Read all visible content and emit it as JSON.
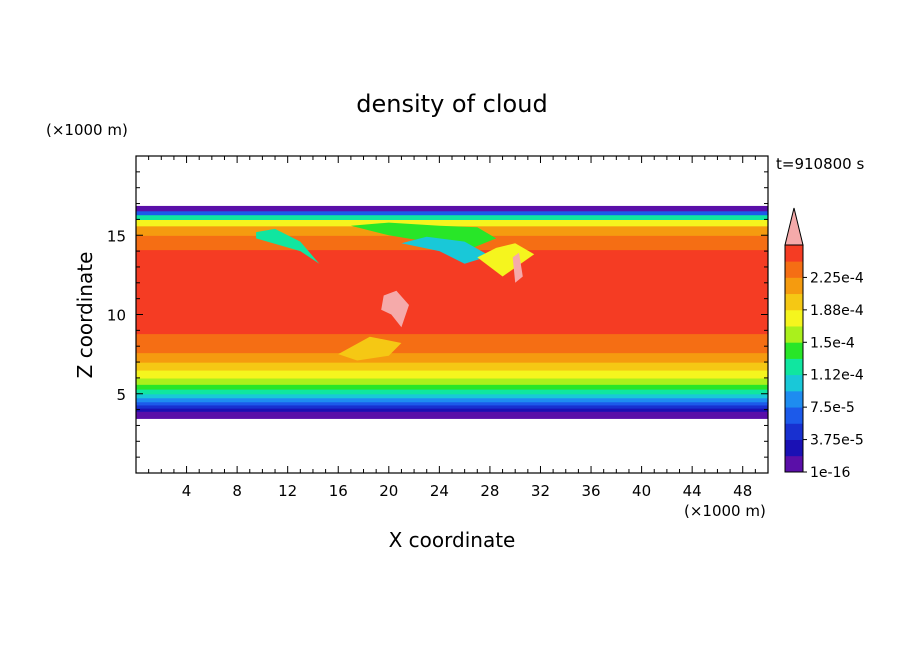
{
  "chart_data": {
    "type": "heatmap",
    "title": "density of cloud",
    "xlabel": "X coordinate",
    "ylabel": "Z coordinate",
    "x_unit": "(×1000 m)",
    "y_unit": "(×1000 m)",
    "time_label": "t=910800 s",
    "xlim": [
      0,
      50
    ],
    "ylim": [
      0,
      20
    ],
    "x_ticks": [
      4,
      8,
      12,
      16,
      20,
      24,
      28,
      32,
      36,
      40,
      44,
      48
    ],
    "y_ticks": [
      5,
      10,
      15
    ],
    "colorbar": {
      "levels": [
        1e-16,
        1.875e-05,
        3.75e-05,
        5.625e-05,
        7.5e-05,
        9.375e-05,
        0.000112,
        0.000131,
        0.00015,
        0.000169,
        0.000188,
        0.000206,
        0.000225,
        0.000244
      ],
      "labels": [
        "1e-16",
        "3.75e-5",
        "7.5e-5",
        "1.12e-4",
        "1.5e-4",
        "1.88e-4",
        "2.25e-4"
      ],
      "label_values": [
        1e-16,
        3.75e-05,
        7.5e-05,
        0.000112,
        0.00015,
        0.000188,
        0.000225
      ],
      "colors": [
        "#5a0fa8",
        "#1a10b4",
        "#1830d0",
        "#1c5aea",
        "#1e8cf0",
        "#19c8d8",
        "#10e6a0",
        "#28e628",
        "#aaf01c",
        "#f5f51e",
        "#f5c814",
        "#f59b0f",
        "#f56e14",
        "#f53c23"
      ],
      "overflow_color": "#f5aaaa"
    },
    "bands": [
      {
        "z": [
          3.45,
          3.9
        ],
        "level": 0
      },
      {
        "z": [
          3.9,
          4.1
        ],
        "level": 1
      },
      {
        "z": [
          4.1,
          4.3
        ],
        "level": 2
      },
      {
        "z": [
          4.3,
          4.5
        ],
        "level": 3
      },
      {
        "z": [
          4.5,
          4.75
        ],
        "level": 4
      },
      {
        "z": [
          4.75,
          5.0
        ],
        "level": 5
      },
      {
        "z": [
          5.0,
          5.3
        ],
        "level": 6
      },
      {
        "z": [
          5.3,
          5.6
        ],
        "level": 7
      },
      {
        "z": [
          5.6,
          6.0
        ],
        "level": 8
      },
      {
        "z": [
          6.0,
          6.5
        ],
        "level": 9
      },
      {
        "z": [
          6.5,
          7.0
        ],
        "level": 10
      },
      {
        "z": [
          7.0,
          7.6
        ],
        "level": 11
      },
      {
        "z": [
          7.6,
          8.8
        ],
        "level": 12
      },
      {
        "z": [
          8.8,
          14.1
        ],
        "level": 13
      },
      {
        "z": [
          14.1,
          15.0
        ],
        "level": 12
      },
      {
        "z": [
          15.0,
          15.6
        ],
        "level": 11
      },
      {
        "z": [
          15.6,
          16.0
        ],
        "level": 9
      },
      {
        "z": [
          16.0,
          16.3
        ],
        "level": 6
      },
      {
        "z": [
          16.3,
          16.55
        ],
        "level": 3
      },
      {
        "z": [
          16.55,
          16.85
        ],
        "level": 0
      }
    ],
    "features": [
      {
        "points": [
          [
            9.5,
            14.8
          ],
          [
            13,
            14.0
          ],
          [
            14.5,
            13.2
          ],
          [
            13,
            14.6
          ],
          [
            11,
            15.4
          ],
          [
            9.5,
            15.2
          ]
        ],
        "level": 6
      },
      {
        "points": [
          [
            17,
            15.6
          ],
          [
            20,
            15.0
          ],
          [
            23,
            14.6
          ],
          [
            26,
            14.0
          ],
          [
            28.5,
            14.8
          ],
          [
            27,
            15.5
          ],
          [
            24,
            15.6
          ],
          [
            20,
            15.8
          ]
        ],
        "level": 7
      },
      {
        "points": [
          [
            21,
            14.5
          ],
          [
            24,
            14.0
          ],
          [
            26,
            13.2
          ],
          [
            28,
            13.7
          ],
          [
            26,
            14.6
          ],
          [
            23,
            14.9
          ]
        ],
        "level": 5
      },
      {
        "points": [
          [
            27,
            13.6
          ],
          [
            29,
            12.4
          ],
          [
            31.5,
            13.8
          ],
          [
            30,
            14.5
          ],
          [
            28.5,
            14.2
          ]
        ],
        "level": 9
      },
      {
        "points": [
          [
            16,
            7.5
          ],
          [
            18.5,
            8.6
          ],
          [
            21,
            8.2
          ],
          [
            20,
            7.4
          ],
          [
            17.5,
            7.1
          ]
        ],
        "level": 10
      }
    ],
    "peak_regions": [
      {
        "points": [
          [
            19.6,
            11.2
          ],
          [
            20.6,
            11.5
          ],
          [
            21.6,
            10.6
          ],
          [
            21.0,
            9.2
          ],
          [
            20.2,
            10.0
          ],
          [
            19.4,
            10.3
          ]
        ],
        "level": 14
      },
      {
        "points": [
          [
            29.8,
            13.6
          ],
          [
            30.3,
            13.9
          ],
          [
            30.6,
            12.4
          ],
          [
            30.0,
            12.0
          ]
        ],
        "level": 14
      }
    ]
  }
}
